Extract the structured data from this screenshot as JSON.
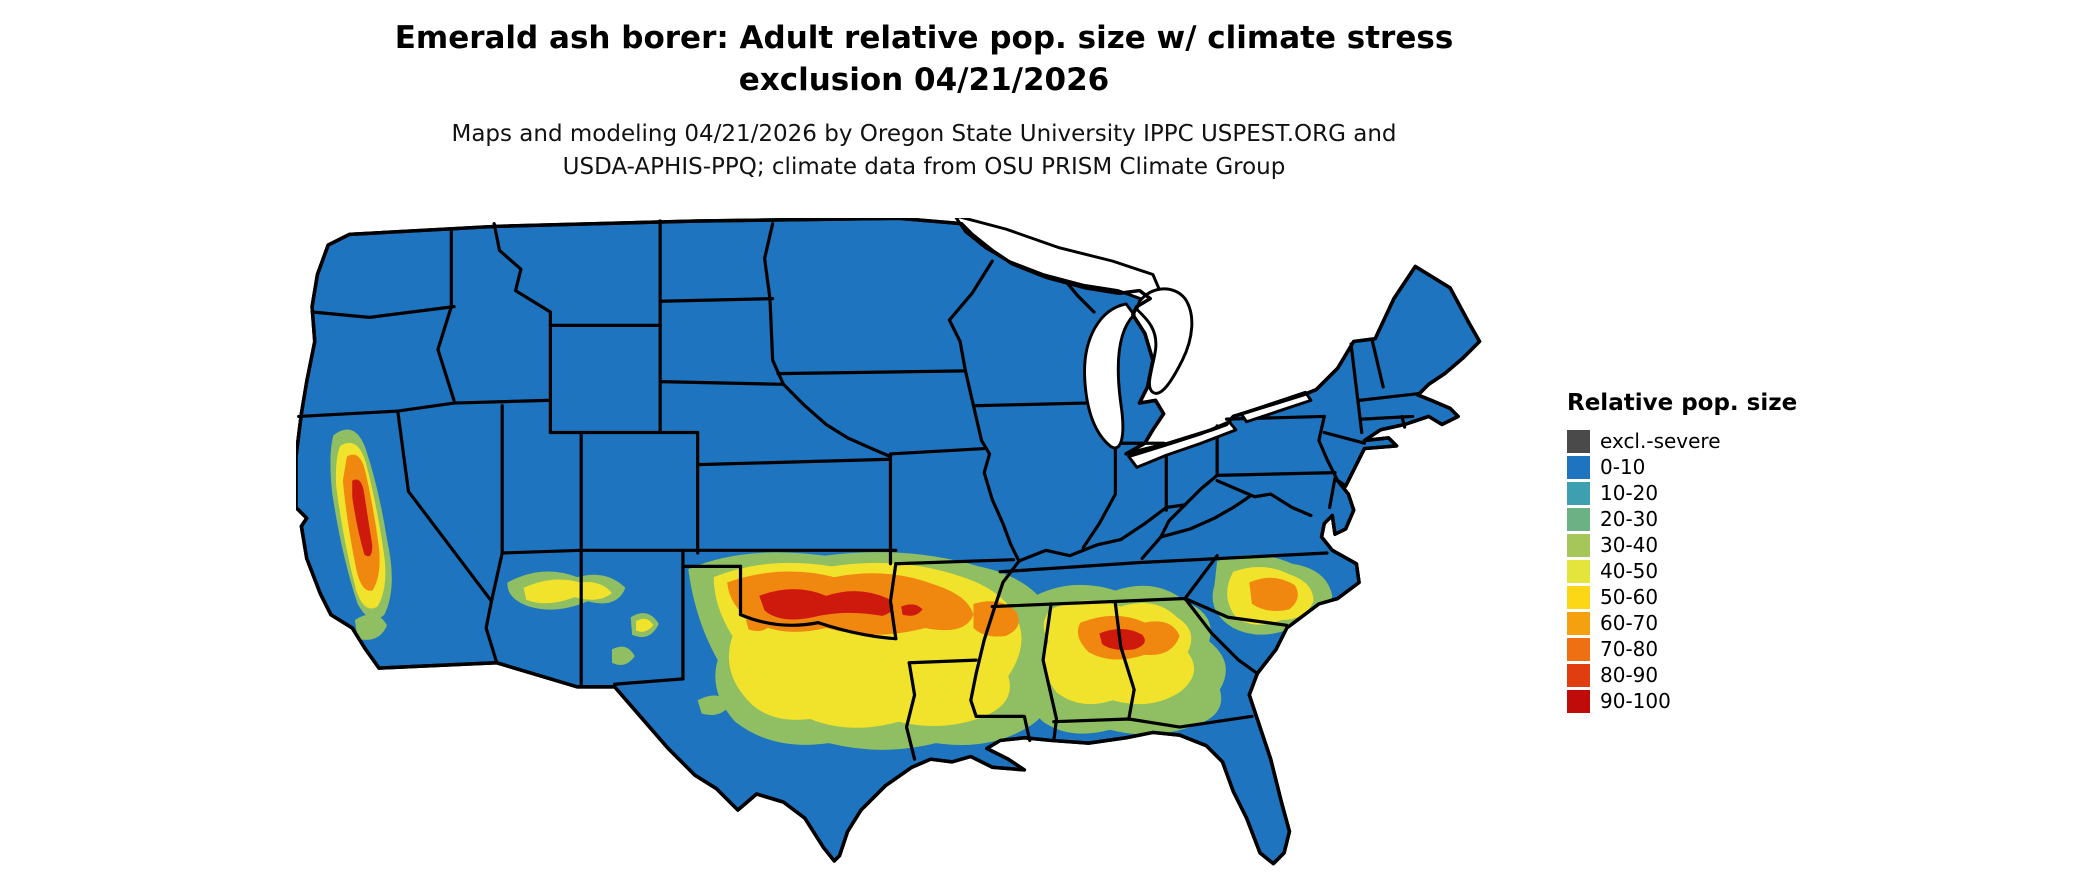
{
  "title": {
    "line1": "Emerald ash borer: Adult relative pop. size w/ climate stress",
    "line2": "exclusion 04/21/2026"
  },
  "subtitle": {
    "line1": "Maps and modeling 04/21/2026 by Oregon State University IPPC USPEST.ORG and",
    "line2": "USDA-APHIS-PPQ; climate data from OSU PRISM Climate Group"
  },
  "legend": {
    "title": "Relative pop. size",
    "items": [
      {
        "label": "excl.-severe",
        "color": "#4A4A4A"
      },
      {
        "label": "0-10",
        "color": "#1E74BE"
      },
      {
        "label": "10-20",
        "color": "#3E9FB0"
      },
      {
        "label": "20-30",
        "color": "#6BB183"
      },
      {
        "label": "30-40",
        "color": "#A6C65A"
      },
      {
        "label": "40-50",
        "color": "#E3E53C"
      },
      {
        "label": "50-60",
        "color": "#FBD716"
      },
      {
        "label": "60-70",
        "color": "#F5A00F"
      },
      {
        "label": "70-80",
        "color": "#EE7012"
      },
      {
        "label": "80-90",
        "color": "#E03D11"
      },
      {
        "label": "90-100",
        "color": "#C00B0B"
      }
    ]
  },
  "map": {
    "description": "Contiguous United States with state boundaries; relative population raster",
    "colors": {
      "base": "#1E74BE",
      "green": "#8FBF62",
      "yellow": "#F1E32B",
      "orange": "#F0880F",
      "red": "#CE1A0C",
      "water": "#FFFFFF",
      "border": "#000000"
    }
  }
}
